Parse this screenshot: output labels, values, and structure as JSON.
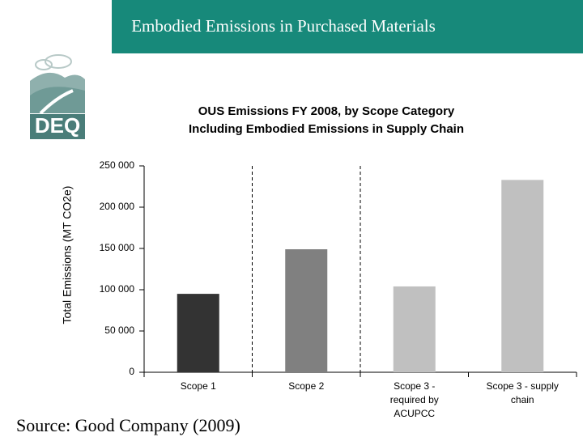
{
  "header": {
    "title": "Embodied Emissions in Purchased Materials"
  },
  "logo": {
    "text": "DEQ"
  },
  "chart_data": {
    "type": "bar",
    "title": "OUS Emissions FY 2008, by Scope Category",
    "subtitle": "Including Embodied Emissions in Supply Chain",
    "y_label": "Total Emissions (MT CO2e)",
    "categories": [
      "Scope 1",
      "Scope 2",
      "Scope 3 - required by ACUPCC",
      "Scope 3 - supply chain"
    ],
    "values": [
      95000,
      149000,
      104000,
      233000
    ],
    "colors": [
      "#333333",
      "#808080",
      "#c0c0c0",
      "#c0c0c0"
    ],
    "ylim": [
      0,
      250000
    ],
    "yticks": [
      0,
      {
        "value": 50000,
        "label": "50 000"
      },
      {
        "value": 100000,
        "label": "100 000"
      },
      {
        "value": 150000,
        "label": "150 000"
      },
      {
        "value": 200000,
        "label": "200 000"
      },
      {
        "value": 250000,
        "label": "250 000"
      }
    ],
    "grid": false
  },
  "footer": {
    "source": "Source: Good Company (2009)"
  }
}
